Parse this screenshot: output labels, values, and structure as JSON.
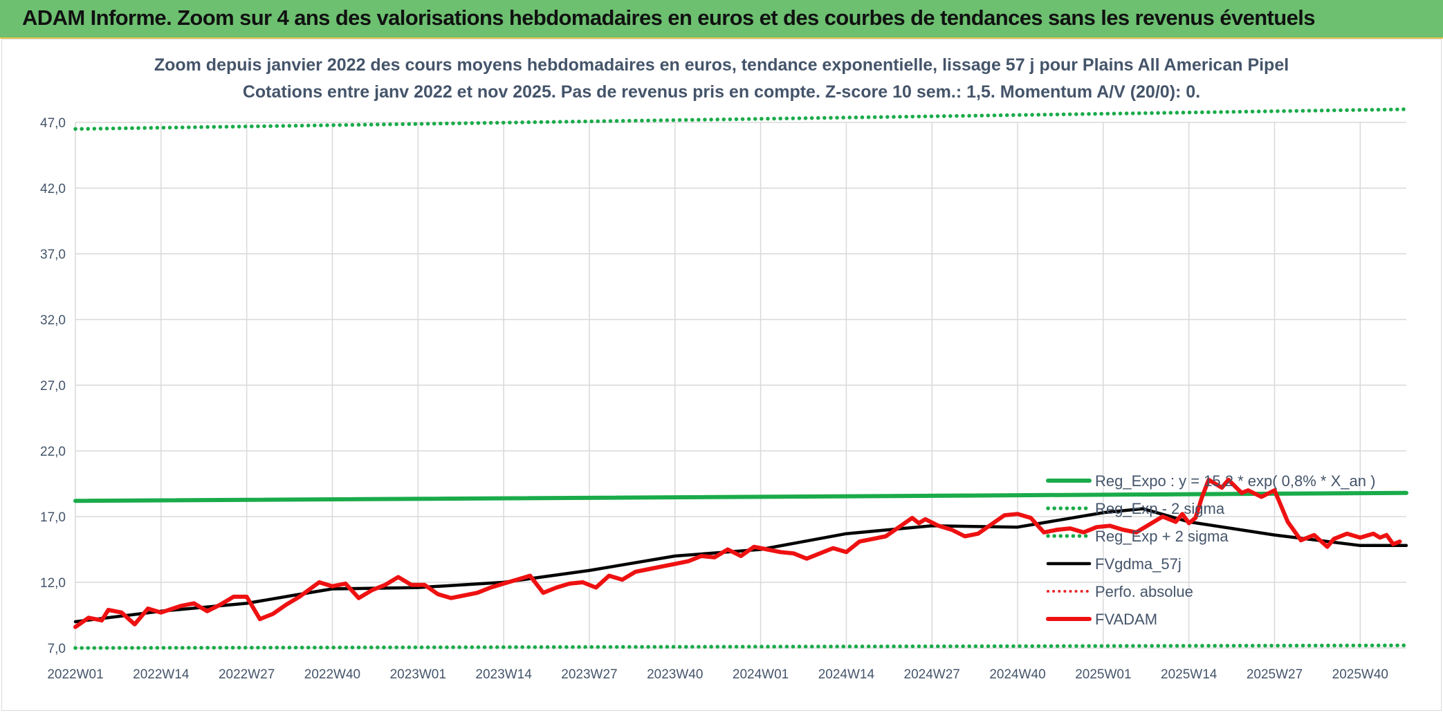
{
  "banner": {
    "title": "ADAM Informe. Zoom sur 4 ans des valorisations hebdomadaires en euros et des courbes de tendances sans les revenus éventuels"
  },
  "colors": {
    "banner_bg": "#6cc070",
    "reg_expo": "#1aab4a",
    "fvgdma": "#000000",
    "perfo": "#e8262b",
    "fvadam": "#ee1111",
    "grid": "#d9d9d9",
    "text": "#44546a"
  },
  "chart_data": {
    "type": "line",
    "title": "Zoom depuis janvier 2022 des cours moyens hebdomadaires en euros, tendance exponentielle, lissage 57 j pour Plains All American Pipel",
    "subtitle": "Cotations entre janv 2022 et nov 2025. Pas de revenus pris en compte. Z-score 10 sem.: 1,5. Momentum A/V (20/0): 0.",
    "y_ticks": [
      "7,0",
      "12,0",
      "17,0",
      "22,0",
      "27,0",
      "32,0",
      "37,0",
      "42,0",
      "47,0"
    ],
    "ylim": [
      7,
      47
    ],
    "x_ticks": [
      "2022W01",
      "2022W14",
      "2022W27",
      "2022W40",
      "2023W01",
      "2023W14",
      "2023W27",
      "2023W40",
      "2024W01",
      "2024W14",
      "2024W27",
      "2024W40",
      "2025W01",
      "2025W14",
      "2025W27",
      "2025W40"
    ],
    "grid": true,
    "legend_position": "right-bottom",
    "series": [
      {
        "name": "Reg_Expo : y = 15,2 * exp( 0,8% *  X_an )",
        "style": "solid",
        "keypoints": [
          [
            "2022W01",
            18.2
          ],
          [
            "2025W47",
            18.8
          ]
        ]
      },
      {
        "name": "Reg_Exp - 2 sigma",
        "style": "dotted",
        "keypoints": [
          [
            "2022W01",
            7.0
          ],
          [
            "2025W47",
            7.2
          ]
        ]
      },
      {
        "name": "Reg_Exp + 2 sigma",
        "style": "dotted",
        "keypoints": [
          [
            "2022W01",
            46.5
          ],
          [
            "2025W47",
            48.0
          ]
        ]
      },
      {
        "name": "FVgdma_57j",
        "style": "solid",
        "keypoints": [
          [
            "2022W01",
            9.0
          ],
          [
            "2022W14",
            9.8
          ],
          [
            "2022W27",
            10.4
          ],
          [
            "2022W34",
            11.0
          ],
          [
            "2022W40",
            11.5
          ],
          [
            "2023W01",
            11.6
          ],
          [
            "2023W14",
            12.0
          ],
          [
            "2023W27",
            12.9
          ],
          [
            "2023W40",
            14.0
          ],
          [
            "2024W01",
            14.5
          ],
          [
            "2024W14",
            15.7
          ],
          [
            "2024W27",
            16.3
          ],
          [
            "2024W40",
            16.2
          ],
          [
            "2025W01",
            17.3
          ],
          [
            "2025W07",
            17.6
          ],
          [
            "2025W14",
            16.6
          ],
          [
            "2025W27",
            15.6
          ],
          [
            "2025W40",
            14.8
          ],
          [
            "2025W47",
            14.8
          ]
        ]
      },
      {
        "name": "Perfo. absolue",
        "style": "dotted",
        "keypoints": []
      },
      {
        "name": "FVADAM",
        "style": "solid",
        "keypoints": [
          [
            "2022W01",
            8.6
          ],
          [
            "2022W03",
            9.3
          ],
          [
            "2022W05",
            9.1
          ],
          [
            "2022W06",
            9.9
          ],
          [
            "2022W08",
            9.7
          ],
          [
            "2022W10",
            8.8
          ],
          [
            "2022W12",
            10.0
          ],
          [
            "2022W14",
            9.7
          ],
          [
            "2022W17",
            10.2
          ],
          [
            "2022W19",
            10.4
          ],
          [
            "2022W21",
            9.8
          ],
          [
            "2022W23",
            10.3
          ],
          [
            "2022W25",
            10.9
          ],
          [
            "2022W27",
            10.9
          ],
          [
            "2022W29",
            9.2
          ],
          [
            "2022W31",
            9.6
          ],
          [
            "2022W33",
            10.3
          ],
          [
            "2022W35",
            10.9
          ],
          [
            "2022W38",
            12.0
          ],
          [
            "2022W40",
            11.7
          ],
          [
            "2022W42",
            11.9
          ],
          [
            "2022W44",
            10.8
          ],
          [
            "2022W46",
            11.4
          ],
          [
            "2022W48",
            11.8
          ],
          [
            "2022W50",
            12.4
          ],
          [
            "2022W52",
            11.8
          ],
          [
            "2023W02",
            11.8
          ],
          [
            "2023W04",
            11.1
          ],
          [
            "2023W06",
            10.8
          ],
          [
            "2023W08",
            11.0
          ],
          [
            "2023W10",
            11.2
          ],
          [
            "2023W12",
            11.6
          ],
          [
            "2023W14",
            11.9
          ],
          [
            "2023W16",
            12.2
          ],
          [
            "2023W18",
            12.5
          ],
          [
            "2023W20",
            11.2
          ],
          [
            "2023W22",
            11.6
          ],
          [
            "2023W24",
            11.9
          ],
          [
            "2023W26",
            12.0
          ],
          [
            "2023W28",
            11.6
          ],
          [
            "2023W30",
            12.5
          ],
          [
            "2023W32",
            12.2
          ],
          [
            "2023W34",
            12.8
          ],
          [
            "2023W36",
            13.0
          ],
          [
            "2023W38",
            13.2
          ],
          [
            "2023W40",
            13.4
          ],
          [
            "2023W42",
            13.6
          ],
          [
            "2023W44",
            14.0
          ],
          [
            "2023W46",
            13.9
          ],
          [
            "2023W48",
            14.5
          ],
          [
            "2023W50",
            14.0
          ],
          [
            "2023W52",
            14.7
          ],
          [
            "2024W02",
            14.5
          ],
          [
            "2024W04",
            14.3
          ],
          [
            "2024W06",
            14.2
          ],
          [
            "2024W08",
            13.8
          ],
          [
            "2024W10",
            14.2
          ],
          [
            "2024W12",
            14.6
          ],
          [
            "2024W14",
            14.3
          ],
          [
            "2024W16",
            15.1
          ],
          [
            "2024W18",
            15.3
          ],
          [
            "2024W20",
            15.5
          ],
          [
            "2024W22",
            16.2
          ],
          [
            "2024W24",
            16.9
          ],
          [
            "2024W25",
            16.5
          ],
          [
            "2024W26",
            16.8
          ],
          [
            "2024W28",
            16.3
          ],
          [
            "2024W30",
            16.0
          ],
          [
            "2024W32",
            15.5
          ],
          [
            "2024W34",
            15.7
          ],
          [
            "2024W36",
            16.4
          ],
          [
            "2024W38",
            17.1
          ],
          [
            "2024W40",
            17.2
          ],
          [
            "2024W42",
            16.9
          ],
          [
            "2024W44",
            15.8
          ],
          [
            "2024W46",
            16.0
          ],
          [
            "2024W48",
            16.1
          ],
          [
            "2024W50",
            15.8
          ],
          [
            "2024W52",
            16.2
          ],
          [
            "2025W02",
            16.3
          ],
          [
            "2025W04",
            16.0
          ],
          [
            "2025W06",
            15.8
          ],
          [
            "2025W08",
            16.4
          ],
          [
            "2025W10",
            17.0
          ],
          [
            "2025W12",
            16.6
          ],
          [
            "2025W13",
            17.2
          ],
          [
            "2025W14",
            16.5
          ],
          [
            "2025W15",
            16.9
          ],
          [
            "2025W16",
            18.5
          ],
          [
            "2025W17",
            19.8
          ],
          [
            "2025W19",
            19.2
          ],
          [
            "2025W20",
            19.8
          ],
          [
            "2025W22",
            18.8
          ],
          [
            "2025W23",
            19.0
          ],
          [
            "2025W25",
            18.5
          ],
          [
            "2025W27",
            19.0
          ],
          [
            "2025W29",
            16.6
          ],
          [
            "2025W31",
            15.2
          ],
          [
            "2025W33",
            15.6
          ],
          [
            "2025W35",
            14.7
          ],
          [
            "2025W36",
            15.3
          ],
          [
            "2025W38",
            15.7
          ],
          [
            "2025W40",
            15.4
          ],
          [
            "2025W42",
            15.7
          ],
          [
            "2025W43",
            15.4
          ],
          [
            "2025W44",
            15.6
          ],
          [
            "2025W45",
            14.9
          ],
          [
            "2025W46",
            15.1
          ]
        ]
      }
    ]
  }
}
